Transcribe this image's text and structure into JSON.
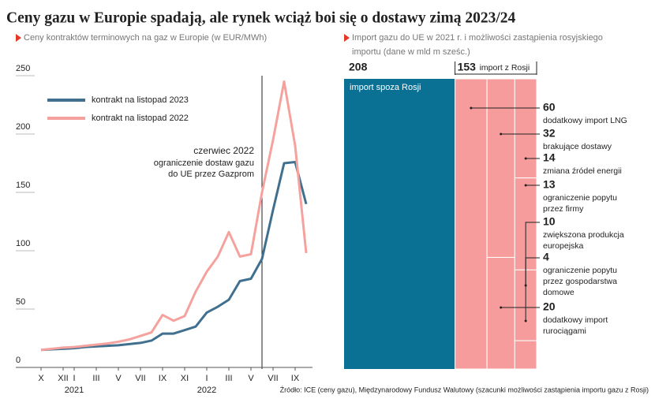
{
  "title": "Ceny gazu w Europie spadają, ale rynek wciąż boi się o dostawy zimą 2023/24",
  "source": "Źródło: ICE (ceny gazu), Międzynarodowy Fundusz Walutowy (szacunki możliwości zastąpienia importu gazu z Rosji)",
  "chart_data": [
    {
      "type": "line",
      "subtitle": "Ceny kontraktów terminowych na gaz w Europie (w EUR/MWh)",
      "categories": [
        "X",
        null,
        "XII",
        "I",
        null,
        "III",
        null,
        "V",
        null,
        "VII",
        null,
        "IX",
        null,
        "XI",
        null,
        "I",
        null,
        "III",
        null,
        "V",
        null,
        "VII",
        null,
        "IX",
        null
      ],
      "years": [
        "2021",
        "2022"
      ],
      "series": [
        {
          "name": "kontrakt na listopad 2023",
          "color": "#41708f",
          "values": [
            15,
            15.5,
            16,
            16.5,
            17.5,
            18,
            18.5,
            19,
            20,
            21,
            23,
            29,
            29,
            32,
            35,
            47,
            52,
            58,
            74,
            76,
            93,
            135,
            175,
            176,
            140
          ]
        },
        {
          "name": "kontrakt na listopad 2022",
          "color": "#f5a29f",
          "values": [
            15,
            16,
            17,
            17.5,
            18.5,
            19.5,
            20.5,
            22,
            24,
            27,
            30,
            45,
            40,
            44,
            65,
            82,
            95,
            116,
            95,
            97,
            150,
            195,
            245,
            190,
            98
          ]
        }
      ],
      "ylim": [
        0,
        250
      ],
      "yticks": [
        0,
        50,
        100,
        150,
        200,
        250
      ],
      "annotation": {
        "title": "czerwiec 2022",
        "lines": [
          "ograniczenie dostaw gazu",
          "do UE przez Gazprom"
        ]
      }
    },
    {
      "type": "treemap",
      "subtitle": [
        "Import gazu do UE w 2021 r. i możliwości zastąpienia rosyjskiego",
        "importu (dane w mld m sześc.)"
      ],
      "total": [
        {
          "label": "import spoza Rosji",
          "value": 208,
          "color": "#0b7194"
        },
        {
          "label": "import z Rosji",
          "value": 153,
          "color": "#f79c9c"
        }
      ],
      "items": [
        {
          "value": 60,
          "label": [
            "dodatkowy import LNG"
          ]
        },
        {
          "value": 32,
          "label": [
            "brakujące dostawy"
          ]
        },
        {
          "value": 14,
          "label": [
            "zmiana źródeł energii"
          ]
        },
        {
          "value": 13,
          "label": [
            "ograniczenie popytu",
            "przez firmy"
          ]
        },
        {
          "value": 10,
          "label": [
            "zwiększona produkcja",
            "europejska"
          ]
        },
        {
          "value": 4,
          "label": [
            "ograniczenie popytu",
            "przez gospodarstwa",
            "domowe"
          ]
        },
        {
          "value": 20,
          "label": [
            "dodatkowy import",
            "rurociągami"
          ]
        }
      ]
    }
  ]
}
